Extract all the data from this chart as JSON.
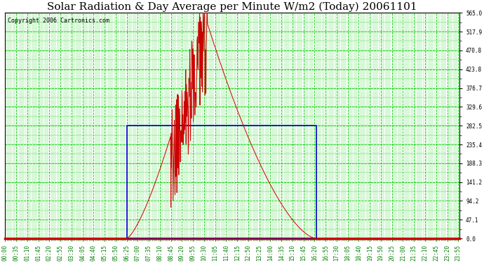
{
  "title": "Solar Radiation & Day Average per Minute W/m2 (Today) 20061101",
  "copyright": "Copyright 2006 Cartronics.com",
  "background_color": "#ffffff",
  "plot_bg_color": "#ffffff",
  "grid_color": "#00cc00",
  "y_max": 565.0,
  "y_min": 0.0,
  "y_ticks": [
    0.0,
    47.1,
    94.2,
    141.2,
    188.3,
    235.4,
    282.5,
    329.6,
    376.7,
    423.8,
    470.8,
    517.9,
    565.0
  ],
  "solar_color": "#cc0000",
  "avg_color": "#0000cc",
  "title_fontsize": 11,
  "copyright_fontsize": 6,
  "tick_fontsize": 5.5,
  "sunrise_min": 385,
  "sunset_min": 985,
  "peak_time_min": 630,
  "peak_val": 565.0,
  "avg_start_min": 385,
  "avg_end_min": 985,
  "avg_value": 282.5,
  "spike_start_min": 525,
  "spike_end_min": 640,
  "x_tick_step": 35,
  "x_total_min": 1440
}
